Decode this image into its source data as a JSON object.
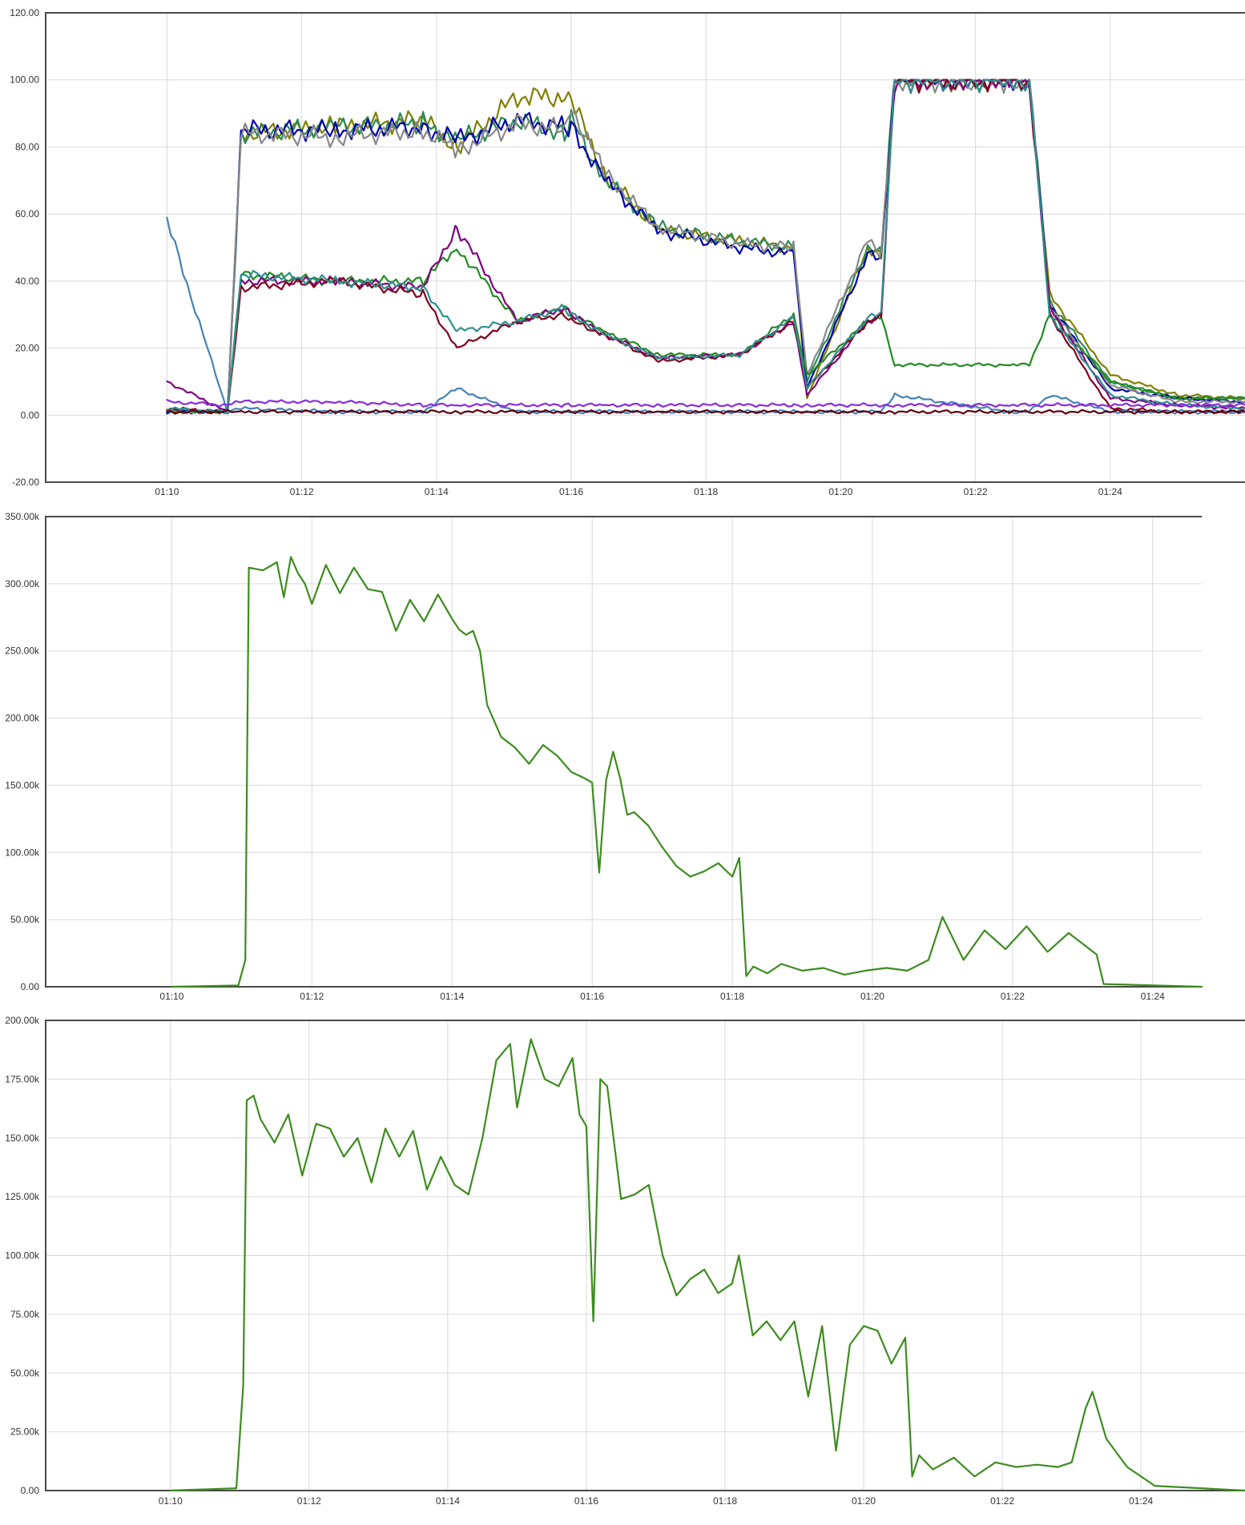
{
  "chart_data": [
    {
      "type": "line",
      "title": "",
      "xlabel": "",
      "ylabel": "",
      "x_ticks": [
        "01:10",
        "01:12",
        "01:14",
        "01:16",
        "01:18",
        "01:20",
        "01:22",
        "01:24"
      ],
      "x_range_minutes": [
        -1.8,
        16.0
      ],
      "ylim": [
        -20,
        120
      ],
      "y_ticks": [
        "120.00",
        "100.00",
        "80.00",
        "60.00",
        "40.00",
        "20.00",
        "0.00",
        "-20.00"
      ],
      "grid": true,
      "series_anchors_minutes_from_0110": [
        0,
        0.9,
        1.1,
        2.5,
        3.8,
        4.3,
        5.2,
        5.9,
        6.0,
        6.5,
        7.3,
        8.5,
        9.3,
        9.5,
        10.4,
        10.6,
        10.8,
        12.5,
        12.8,
        13.1,
        14.0,
        15.0,
        16.0
      ],
      "series": [
        {
          "color": "#808000",
          "values": [
            1,
            1,
            84,
            86,
            88,
            80,
            95,
            95,
            94,
            72,
            55,
            52,
            50,
            5,
            50,
            48,
            100,
            100,
            100,
            36,
            12,
            6,
            5
          ]
        },
        {
          "color": "#2e8b57",
          "values": [
            1,
            1,
            84,
            86,
            87,
            82,
            88,
            84,
            88,
            70,
            56,
            52,
            50,
            10,
            50,
            48,
            100,
            100,
            100,
            34,
            10,
            5,
            5
          ]
        },
        {
          "color": "#0000aa",
          "values": [
            1,
            1,
            85,
            85,
            86,
            82,
            88,
            86,
            86,
            70,
            55,
            50,
            48,
            8,
            48,
            46,
            100,
            100,
            100,
            33,
            8,
            5,
            4
          ]
        },
        {
          "color": "#888888",
          "values": [
            1,
            1,
            84,
            83,
            85,
            79,
            87,
            85,
            92,
            72,
            56,
            51,
            50,
            12,
            52,
            48,
            100,
            100,
            100,
            32,
            9,
            4,
            4
          ]
        },
        {
          "color": "#228b22",
          "values": [
            1,
            1,
            42,
            40,
            40,
            50,
            28,
            32,
            30,
            25,
            18,
            18,
            30,
            12,
            28,
            30,
            15,
            15,
            15,
            30,
            10,
            5,
            5
          ]
        },
        {
          "color": "#800080",
          "values": [
            10,
            1,
            40,
            40,
            38,
            56,
            28,
            32,
            30,
            24,
            17,
            18,
            28,
            6,
            28,
            30,
            100,
            100,
            100,
            32,
            5,
            3,
            2
          ]
        },
        {
          "color": "#800020",
          "values": [
            2,
            1,
            38,
            40,
            36,
            20,
            28,
            30,
            28,
            24,
            16,
            18,
            28,
            8,
            28,
            29,
            100,
            100,
            100,
            30,
            2,
            1,
            1
          ]
        },
        {
          "color": "#2f8f8f",
          "values": [
            2,
            1,
            42,
            40,
            38,
            25,
            28,
            32,
            30,
            24,
            17,
            18,
            29,
            8,
            29,
            30,
            100,
            100,
            100,
            30,
            6,
            3,
            2
          ]
        },
        {
          "color": "#4682b4",
          "values": [
            58,
            1,
            2,
            1,
            1,
            8,
            1,
            1,
            1,
            1,
            1,
            1,
            1,
            1,
            1,
            1,
            6,
            1,
            1,
            6,
            1,
            1,
            1
          ]
        },
        {
          "color": "#8a2be2",
          "values": [
            4,
            3,
            4,
            4,
            3,
            3,
            3,
            3,
            3,
            3,
            3,
            3,
            3,
            3,
            3,
            3,
            3,
            3,
            3,
            3,
            3,
            3,
            3
          ]
        },
        {
          "color": "#5a0010",
          "values": [
            1,
            1,
            1,
            1,
            1,
            1,
            1,
            1,
            1,
            1,
            1,
            1,
            1,
            1,
            1,
            1,
            1,
            1,
            1,
            1,
            1,
            1,
            1
          ]
        }
      ]
    },
    {
      "type": "line",
      "title": "",
      "xlabel": "",
      "ylabel": "",
      "x_ticks": [
        "01:10",
        "01:12",
        "01:14",
        "01:16",
        "01:18",
        "01:20",
        "01:22",
        "01:24"
      ],
      "x_range_minutes": [
        -1.8,
        14.7
      ],
      "ylim": [
        0,
        350000
      ],
      "y_ticks": [
        "350.00k",
        "300.00k",
        "250.00k",
        "200.00k",
        "150.00k",
        "100.00k",
        "50.00k",
        "0.00"
      ],
      "grid": true,
      "series": [
        {
          "color": "#3d8c1e",
          "x_minutes": [
            0,
            0.95,
            1.05,
            1.1,
            1.3,
            1.5,
            1.6,
            1.7,
            1.8,
            1.9,
            2.0,
            2.2,
            2.4,
            2.6,
            2.8,
            3.0,
            3.2,
            3.4,
            3.6,
            3.8,
            4.0,
            4.1,
            4.2,
            4.3,
            4.4,
            4.5,
            4.7,
            4.9,
            5.1,
            5.3,
            5.5,
            5.7,
            5.9,
            6.0,
            6.1,
            6.2,
            6.3,
            6.4,
            6.5,
            6.6,
            6.8,
            7.0,
            7.2,
            7.4,
            7.6,
            7.8,
            8.0,
            8.1,
            8.2,
            8.3,
            8.5,
            8.7,
            9.0,
            9.3,
            9.6,
            9.9,
            10.2,
            10.5,
            10.8,
            11.0,
            11.3,
            11.6,
            11.9,
            12.2,
            12.5,
            12.8,
            13.0,
            13.2,
            13.3,
            14.7
          ],
          "values": [
            0,
            1000,
            20000,
            312000,
            310000,
            316000,
            290000,
            320000,
            308000,
            300000,
            285000,
            314000,
            293000,
            312000,
            296000,
            294000,
            265000,
            288000,
            272000,
            292000,
            274000,
            266000,
            262000,
            265000,
            250000,
            210000,
            186000,
            178000,
            166000,
            180000,
            172000,
            160000,
            155000,
            152000,
            85000,
            154000,
            175000,
            155000,
            128000,
            130000,
            120000,
            104000,
            90000,
            82000,
            86000,
            92000,
            82000,
            96000,
            8000,
            15000,
            10000,
            17000,
            12000,
            14000,
            9000,
            12000,
            14000,
            12000,
            20000,
            52000,
            20000,
            42000,
            28000,
            45000,
            26000,
            40000,
            32000,
            24000,
            2000,
            0
          ]
        }
      ]
    },
    {
      "type": "line",
      "title": "",
      "xlabel": "",
      "ylabel": "",
      "x_ticks": [
        "01:10",
        "01:12",
        "01:14",
        "01:16",
        "01:18",
        "01:20",
        "01:22",
        "01:24"
      ],
      "x_range_minutes": [
        -1.8,
        15.5
      ],
      "ylim": [
        0,
        200000
      ],
      "y_ticks": [
        "200.00k",
        "175.00k",
        "150.00k",
        "125.00k",
        "100.00k",
        "75.00k",
        "50.00k",
        "25.00k",
        "0.00"
      ],
      "grid": true,
      "series": [
        {
          "color": "#3d8c1e",
          "x_minutes": [
            0,
            0.95,
            1.05,
            1.1,
            1.2,
            1.3,
            1.5,
            1.7,
            1.9,
            2.1,
            2.3,
            2.5,
            2.7,
            2.9,
            3.1,
            3.3,
            3.5,
            3.7,
            3.9,
            4.1,
            4.3,
            4.5,
            4.7,
            4.9,
            5.0,
            5.2,
            5.4,
            5.6,
            5.8,
            5.9,
            6.0,
            6.1,
            6.2,
            6.3,
            6.5,
            6.7,
            6.9,
            7.1,
            7.3,
            7.5,
            7.7,
            7.9,
            8.1,
            8.2,
            8.4,
            8.6,
            8.8,
            9.0,
            9.2,
            9.4,
            9.6,
            9.8,
            10.0,
            10.2,
            10.4,
            10.6,
            10.7,
            10.8,
            11.0,
            11.3,
            11.6,
            11.9,
            12.2,
            12.5,
            12.8,
            13.0,
            13.2,
            13.3,
            13.5,
            13.8,
            14.2,
            15.5
          ],
          "values": [
            0,
            1000,
            45000,
            166000,
            168000,
            158000,
            148000,
            160000,
            134000,
            156000,
            154000,
            142000,
            150000,
            131000,
            154000,
            142000,
            153000,
            128000,
            142000,
            130000,
            126000,
            150000,
            183000,
            190000,
            163000,
            192000,
            175000,
            172000,
            184000,
            160000,
            155000,
            72000,
            175000,
            172000,
            124000,
            126000,
            130000,
            100000,
            83000,
            90000,
            94000,
            84000,
            88000,
            100000,
            66000,
            72000,
            64000,
            72000,
            40000,
            70000,
            17000,
            62000,
            70000,
            68000,
            54000,
            65000,
            6000,
            15000,
            9000,
            14000,
            6000,
            12000,
            10000,
            11000,
            10000,
            12000,
            35000,
            42000,
            22000,
            10000,
            2000,
            0
          ]
        }
      ]
    }
  ]
}
